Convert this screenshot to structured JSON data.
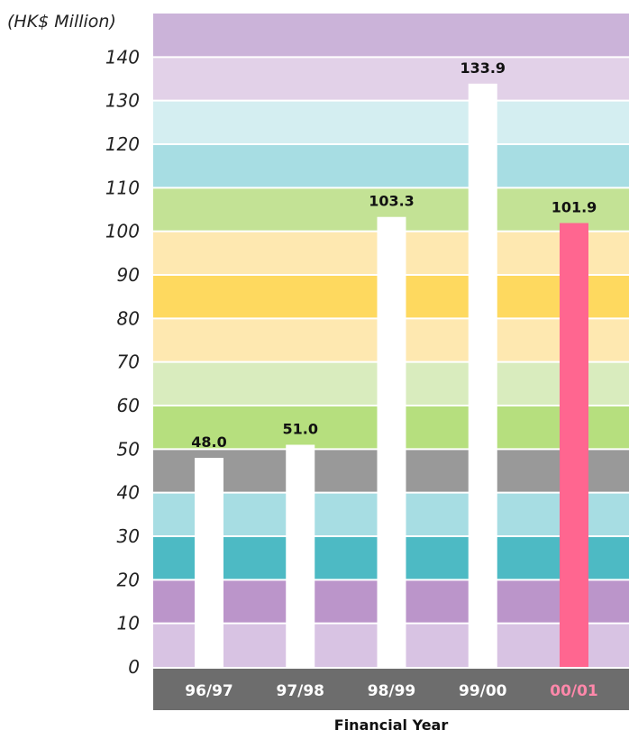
{
  "chart_data": {
    "type": "bar",
    "ylabel": "(HK$ Million)",
    "xlabel": "Financial Year",
    "categories": [
      "96/97",
      "97/98",
      "98/99",
      "99/00",
      "00/01"
    ],
    "values": [
      48.0,
      51.0,
      103.3,
      133.9,
      101.9
    ],
    "value_labels": [
      "48.0",
      "51.0",
      "103.3",
      "133.9",
      "101.9"
    ],
    "ylim": [
      0,
      150
    ],
    "yticks": [
      0,
      10,
      20,
      30,
      40,
      50,
      60,
      70,
      80,
      90,
      100,
      110,
      120,
      130,
      140
    ],
    "bar_color": "#ffffff",
    "highlight_bar_color": "#ff6690",
    "highlight_index": 4,
    "category_label_color": "#ffffff",
    "highlight_label_color": "#ff88aa",
    "band_colors": [
      "#d8c3e3",
      "#bb95ca",
      "#4dbac4",
      "#a7dde3",
      "#999999",
      "#b6df7e",
      "#d9ecbe",
      "#fee8b0",
      "#fed95f",
      "#fee8b0",
      "#c3e295",
      "#a7dde3",
      "#d4eef1",
      "#e2d1e8",
      "#cbb3d9"
    ],
    "axis_band_color": "#6d6d6d",
    "grid": false
  }
}
